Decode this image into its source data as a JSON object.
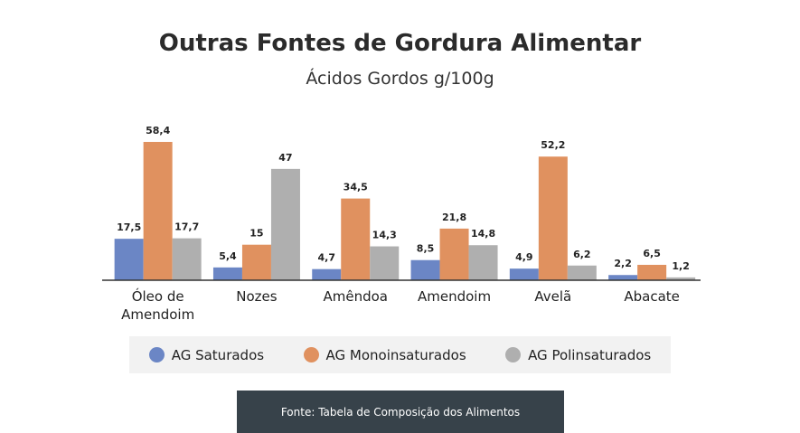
{
  "chart_data": {
    "type": "bar",
    "title": "Outras Fontes de Gordura Alimentar",
    "subtitle": "Ácidos Gordos g/100g",
    "categories": [
      "Óleo de Amendoim",
      "Nozes",
      "Amêndoa",
      "Amendoim",
      "Avelã",
      "Abacate"
    ],
    "series": [
      {
        "name": "AG Saturados",
        "color": "#6b86c5",
        "values": [
          17.5,
          5.4,
          4.7,
          8.5,
          4.9,
          2.2
        ],
        "value_labels": [
          "17,5",
          "5,4",
          "4,7",
          "8,5",
          "4,9",
          "2,2"
        ]
      },
      {
        "name": "AG Monoinsaturados",
        "color": "#e0915f",
        "values": [
          58.4,
          15,
          34.5,
          21.8,
          52.2,
          6.5
        ],
        "value_labels": [
          "58,4",
          "15",
          "34,5",
          "21,8",
          "52,2",
          "6,5"
        ]
      },
      {
        "name": "AG Polinsaturados",
        "color": "#afafaf",
        "values": [
          17.7,
          47,
          14.3,
          14.8,
          6.2,
          1.2
        ],
        "value_labels": [
          "17,7",
          "47",
          "14,3",
          "14,8",
          "6,2",
          "1,2"
        ]
      }
    ],
    "source": "Fonte: Tabela de Composição dos Alimentos"
  }
}
